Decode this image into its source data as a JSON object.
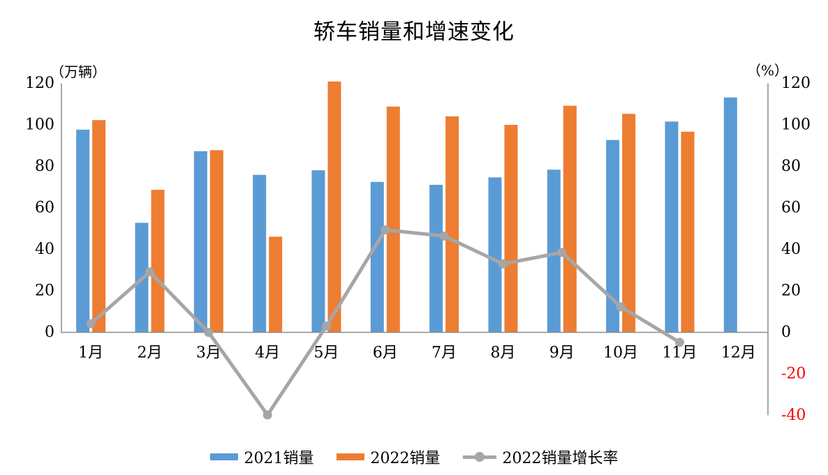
{
  "title": "轿车销量和增速变化",
  "colors": {
    "bar_2021": "#5B9BD5",
    "bar_2022": "#ED7D31",
    "growth_line": "#A6A6A6",
    "axis_line": "#8C8C8C",
    "negative_label": "#FF0000",
    "label_text": "#000000",
    "background": "#FFFFFF"
  },
  "chart_data": {
    "type": "bar+line combo",
    "title": "轿车销量和增速变化",
    "categories": [
      "1月",
      "2月",
      "3月",
      "4月",
      "5月",
      "6月",
      "7月",
      "8月",
      "9月",
      "10月",
      "11月",
      "12月"
    ],
    "series": [
      {
        "name": "2021销量",
        "type": "bar",
        "axis": "left",
        "color": "#5B9BD5",
        "values": [
          97.7,
          52.8,
          87.3,
          75.9,
          78.1,
          72.5,
          71.1,
          74.7,
          78.4,
          92.7,
          101.6,
          113.2
        ]
      },
      {
        "name": "2022销量",
        "type": "bar",
        "axis": "left",
        "color": "#ED7D31",
        "values": [
          102.3,
          68.7,
          87.8,
          46.1,
          120.9,
          108.8,
          104.1,
          100.0,
          109.2,
          105.3,
          96.7,
          null
        ]
      },
      {
        "name": "2022销量增长率",
        "type": "line",
        "axis": "right",
        "color": "#A6A6A6",
        "values": [
          4.2,
          29.1,
          0,
          -39.8,
          3,
          49.4,
          46.4,
          33,
          38.5,
          12.3,
          -4.8,
          null
        ]
      }
    ],
    "left_axis": {
      "unit": "（万辆）",
      "min": 0,
      "max": 120,
      "step": 20
    },
    "right_axis": {
      "unit": "（%）",
      "min": -40,
      "max": 120,
      "step": 20,
      "negative_tick_color": "#FF0000"
    },
    "legend_position": "bottom",
    "gridlines": false
  }
}
